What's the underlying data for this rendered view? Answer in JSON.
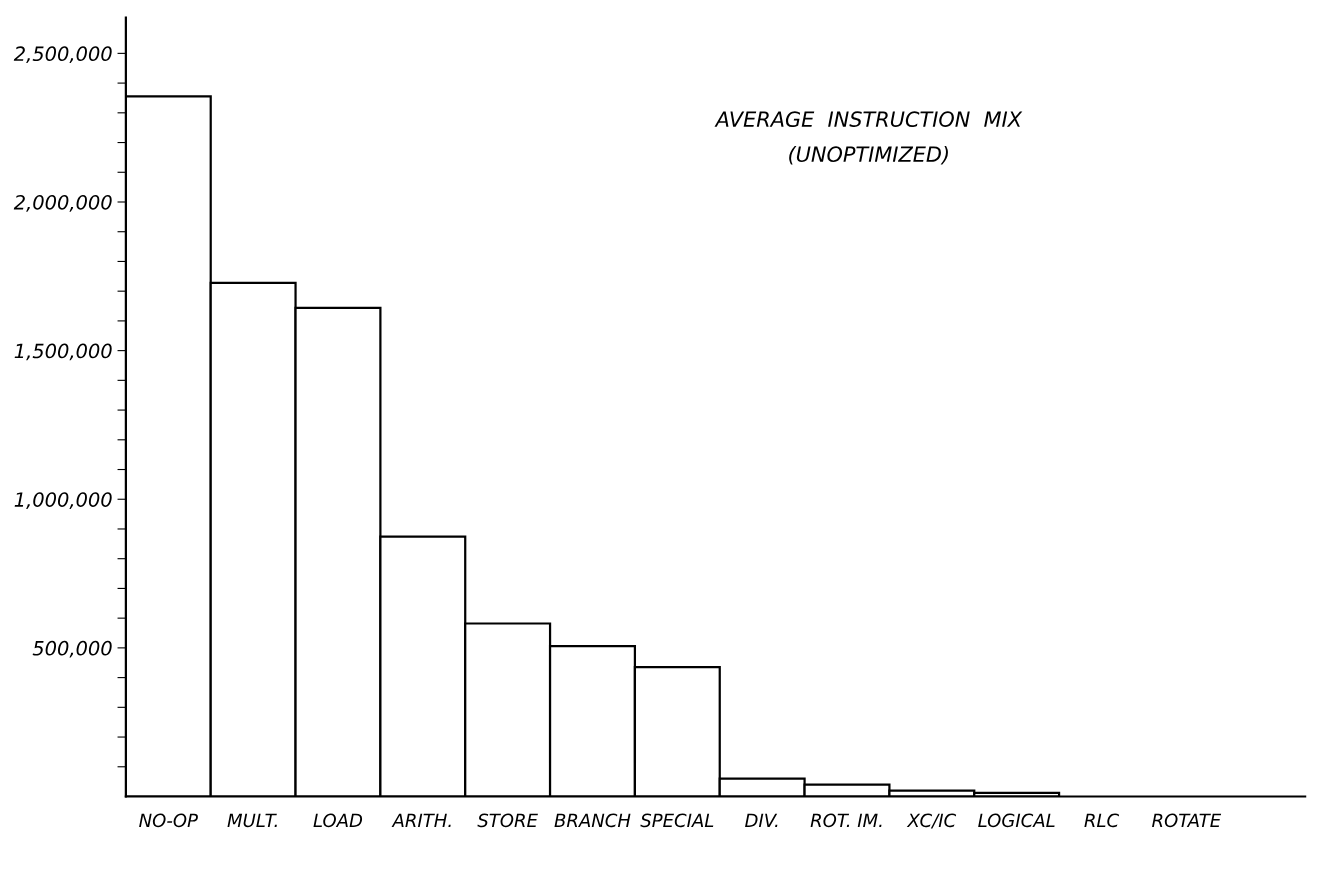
{
  "chart_data": {
    "type": "bar",
    "title": "AVERAGE  INSTRUCTION  MIX",
    "subtitle": "(UNOPTIMIZED)",
    "categories": [
      "NO-OP",
      "MULT.",
      "LOAD",
      "ARITH.",
      "STORE",
      "BRANCH",
      "SPECIAL",
      "DIV.",
      "ROT. IM.",
      "XC/IC",
      "LOGICAL",
      "RLC",
      "ROTATE"
    ],
    "values": [
      2355000,
      1728000,
      1644000,
      874000,
      582000,
      506000,
      435000,
      60000,
      40000,
      20000,
      12000,
      null,
      null
    ],
    "color": "#ffffff",
    "ylim": [
      0,
      2620000
    ],
    "yticks": [
      {
        "value": 100000,
        "label": null
      },
      {
        "value": 200000,
        "label": null
      },
      {
        "value": 300000,
        "label": null
      },
      {
        "value": 400000,
        "label": null
      },
      {
        "value": 500000,
        "label": "500,000"
      },
      {
        "value": 600000,
        "label": null
      },
      {
        "value": 700000,
        "label": null
      },
      {
        "value": 800000,
        "label": null
      },
      {
        "value": 900000,
        "label": null
      },
      {
        "value": 1000000,
        "label": "1,000,000"
      },
      {
        "value": 1100000,
        "label": null
      },
      {
        "value": 1200000,
        "label": null
      },
      {
        "value": 1300000,
        "label": null
      },
      {
        "value": 1400000,
        "label": null
      },
      {
        "value": 1500000,
        "label": "1,500,000"
      },
      {
        "value": 1600000,
        "label": null
      },
      {
        "value": 1700000,
        "label": null
      },
      {
        "value": 1800000,
        "label": null
      },
      {
        "value": 1900000,
        "label": null
      },
      {
        "value": 2000000,
        "label": "2,000,000"
      },
      {
        "value": 2100000,
        "label": null
      },
      {
        "value": 2200000,
        "label": null
      },
      {
        "value": 2300000,
        "label": null
      },
      {
        "value": 2400000,
        "label": null
      },
      {
        "value": 2500000,
        "label": "2,500,000"
      }
    ],
    "grid": false,
    "legend": false
  }
}
